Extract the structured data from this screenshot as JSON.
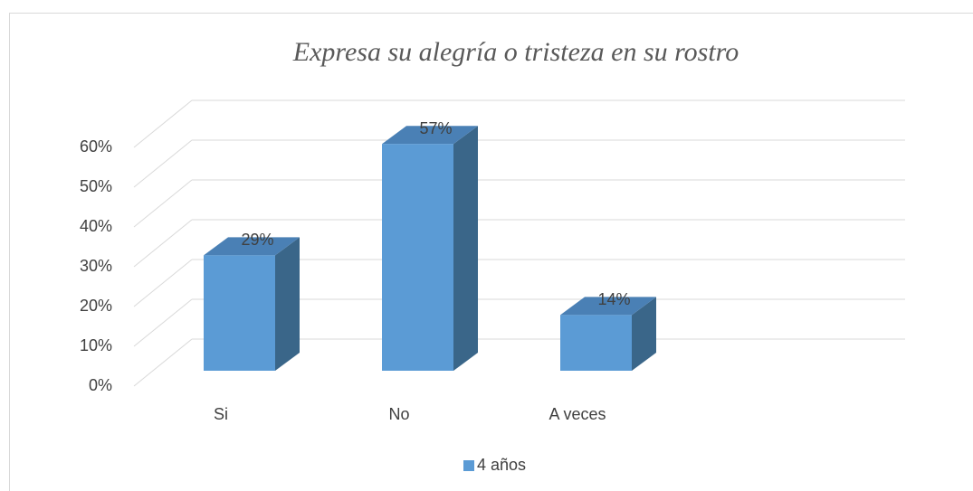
{
  "chart_data": {
    "type": "bar3d",
    "title": "Expresa su alegría o tristeza en su rostro",
    "categories": [
      "Si",
      "No",
      "A veces"
    ],
    "series": [
      {
        "name": "4 años",
        "color": "#5b9bd5",
        "values": [
          29,
          57,
          14
        ],
        "value_labels": [
          "29%",
          "57%",
          "14%"
        ]
      }
    ],
    "ylim": [
      0,
      60
    ],
    "yticks": [
      {
        "value": 0,
        "label": "0%"
      },
      {
        "value": 10,
        "label": "10%"
      },
      {
        "value": 20,
        "label": "20%"
      },
      {
        "value": 30,
        "label": "30%"
      },
      {
        "value": 40,
        "label": "40%"
      },
      {
        "value": 50,
        "label": "50%"
      },
      {
        "value": 60,
        "label": "60%"
      }
    ],
    "grid": true,
    "legend": "bottom"
  }
}
